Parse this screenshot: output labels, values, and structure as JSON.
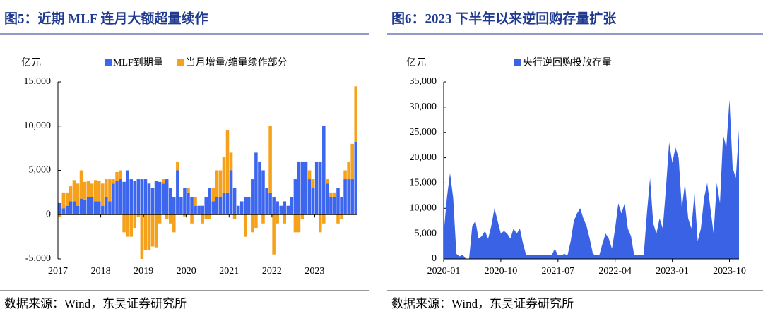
{
  "chart_data": [
    {
      "type": "bar",
      "stacked": true,
      "title": "图5：近期 MLF 连月大额超量续作",
      "y_unit": "亿元",
      "source": "数据来源：Wind，东吴证券研究所",
      "categories": [
        "2017",
        null,
        null,
        null,
        null,
        null,
        null,
        null,
        null,
        null,
        null,
        null,
        "2018",
        null,
        null,
        null,
        null,
        null,
        null,
        null,
        null,
        null,
        null,
        null,
        "2019",
        null,
        null,
        null,
        null,
        null,
        null,
        null,
        null,
        null,
        null,
        null,
        "2020",
        null,
        null,
        null,
        null,
        null,
        null,
        null,
        null,
        null,
        null,
        null,
        "2021",
        null,
        null,
        null,
        null,
        null,
        null,
        null,
        null,
        null,
        null,
        null,
        "2022",
        null,
        null,
        null,
        null,
        null,
        null,
        null,
        null,
        null,
        null,
        null,
        "2023",
        null,
        null,
        null,
        null,
        null,
        null,
        null,
        null,
        null,
        null,
        null
      ],
      "series": [
        {
          "name": "MLF到期量",
          "color": "#3d66ee",
          "values": [
            1300,
            700,
            1000,
            1500,
            1500,
            1000,
            1800,
            1700,
            2000,
            2000,
            1500,
            1500,
            1000,
            2000,
            1500,
            3500,
            3800,
            4000,
            3700,
            5000,
            4000,
            3800,
            4000,
            4000,
            4000,
            3500,
            3000,
            3800,
            3700,
            3500,
            4000,
            3000,
            2000,
            5000,
            2000,
            3000,
            2500,
            2000,
            1000,
            1000,
            1000,
            2000,
            3000,
            1500,
            2000,
            2000,
            2500,
            2500,
            5000,
            3000,
            1000,
            1500,
            2000,
            2000,
            4000,
            7000,
            6000,
            5000,
            3000,
            2500,
            2000,
            1500,
            1000,
            1500,
            1000,
            2000,
            4000,
            6000,
            6000,
            6000,
            4000,
            3000,
            6000,
            6000,
            10000,
            3500,
            2000,
            2000,
            3000,
            2000,
            4000,
            4000,
            4000,
            8200
          ]
        },
        {
          "name": "当月增量/缩量续作部分",
          "color": "#f5a11c",
          "values": [
            -300,
            1800,
            1500,
            1700,
            2400,
            2500,
            3200,
            2000,
            1800,
            1500,
            2400,
            2300,
            2500,
            2000,
            2500,
            500,
            1000,
            1000,
            -2000,
            -2500,
            -2500,
            -1500,
            -300,
            -5000,
            -4000,
            -4000,
            -3600,
            -3700,
            -1000,
            500,
            -500,
            -1000,
            -2000,
            1000,
            0,
            -200,
            500,
            -1000,
            1000,
            0,
            -1000,
            -500,
            -500,
            1500,
            3000,
            3000,
            4000,
            7000,
            2000,
            -500,
            0,
            0,
            -2500,
            0,
            -2000,
            -1500,
            0,
            -1000,
            0,
            7500,
            -4500,
            -1000,
            0,
            -1000,
            0,
            0,
            -2000,
            -2000,
            -500,
            0,
            1000,
            1000,
            0,
            -2000,
            -1000,
            500,
            500,
            500,
            -1000,
            -500,
            1000,
            2000,
            4000,
            6300
          ]
        }
      ],
      "ylim": [
        -5000,
        15000
      ],
      "yticks": [
        {
          "value": -5000,
          "label": "-5,000"
        },
        0,
        {
          "value": 5000,
          "label": "5,000"
        },
        {
          "value": 10000,
          "label": "10,000"
        },
        {
          "value": 15000,
          "label": "15,000"
        }
      ]
    },
    {
      "type": "area",
      "title": "图6：2023 下半年以来逆回购存量扩张",
      "y_unit": "亿元",
      "source": "数据来源：Wind，东吴证券研究所",
      "categories": [
        "2020-01",
        null,
        null,
        null,
        null,
        null,
        null,
        null,
        null,
        null,
        null,
        null,
        null,
        null,
        null,
        null,
        null,
        null,
        "2020-10",
        null,
        null,
        null,
        null,
        null,
        null,
        null,
        null,
        null,
        null,
        null,
        null,
        null,
        null,
        null,
        null,
        null,
        "2021-07",
        null,
        null,
        null,
        null,
        null,
        null,
        null,
        null,
        null,
        null,
        null,
        null,
        null,
        null,
        null,
        null,
        null,
        "2022-04",
        null,
        null,
        null,
        null,
        null,
        null,
        null,
        null,
        null,
        null,
        null,
        null,
        null,
        null,
        null,
        null,
        null,
        "2023-01",
        null,
        null,
        null,
        null,
        null,
        null,
        null,
        null,
        null,
        null,
        null,
        null,
        null,
        null,
        null,
        null,
        null,
        "2023-10",
        null,
        null,
        null
      ],
      "series": [
        {
          "name": "央行逆回购投放存量",
          "color": "#3a62e4",
          "values": [
            5000,
            12000,
            17000,
            12000,
            1000,
            500,
            800,
            0,
            0,
            6500,
            7500,
            4000,
            4500,
            5500,
            4000,
            6500,
            10000,
            7500,
            5000,
            5500,
            5000,
            4000,
            6000,
            5000,
            6000,
            3000,
            700,
            700,
            700,
            700,
            700,
            700,
            700,
            800,
            700,
            2000,
            700,
            700,
            1000,
            700,
            3500,
            7500,
            9000,
            10000,
            8000,
            6500,
            4000,
            1000,
            700,
            700,
            3000,
            5000,
            4000,
            2000,
            6000,
            11000,
            9000,
            11000,
            6000,
            4500,
            700,
            700,
            700,
            700,
            9000,
            16000,
            7000,
            5000,
            8000,
            6000,
            14000,
            23000,
            19000,
            22000,
            20000,
            10000,
            15000,
            8000,
            6000,
            13000,
            3500,
            6000,
            12000,
            15000,
            10000,
            5000,
            15000,
            11000,
            24500,
            22000,
            31500,
            18000,
            16000,
            25500
          ]
        }
      ],
      "ylim": [
        0,
        35000
      ],
      "yticks": [
        0,
        {
          "value": 5000,
          "label": "5,000"
        },
        {
          "value": 10000,
          "label": "10,000"
        },
        {
          "value": 15000,
          "label": "15,000"
        },
        {
          "value": 20000,
          "label": "20,000"
        },
        {
          "value": 25000,
          "label": "25,000"
        },
        {
          "value": 30000,
          "label": "30,000"
        },
        {
          "value": 35000,
          "label": "35,000"
        }
      ]
    }
  ]
}
